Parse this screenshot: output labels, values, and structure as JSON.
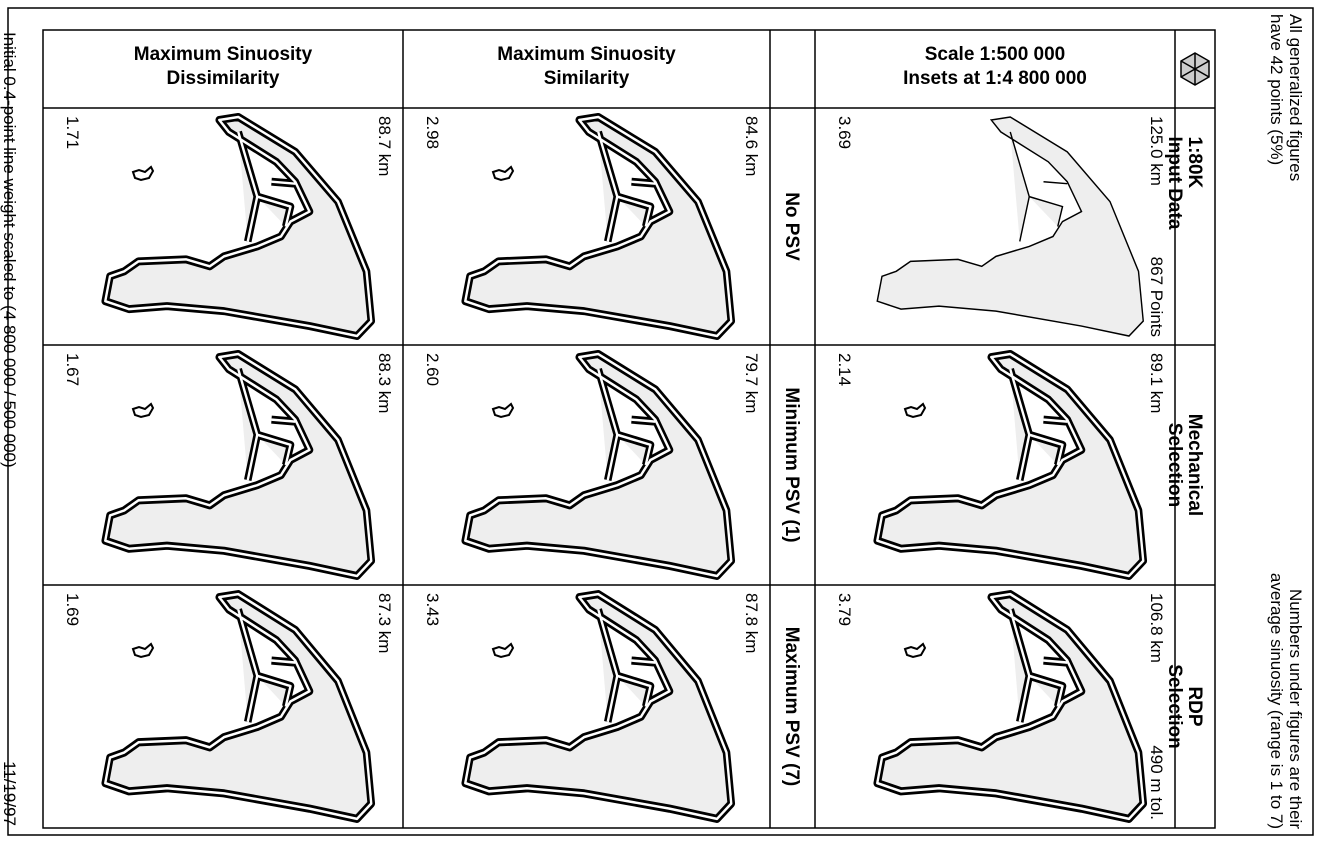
{
  "left_note": "Initial 0.4-point line weight scaled to (4 800 000 / 500 000)",
  "date": "11/19/97",
  "right_notes": [
    [
      "All generalized figures",
      "have 42 points (5%)"
    ],
    [
      "Numbers under figures are their",
      "average sinuosity (range is 1 to 7)"
    ]
  ],
  "columns": [
    {
      "header": [
        "Maximum Sinuosity",
        "Dissimilarity"
      ],
      "cells": [
        {
          "length": "88.7 km",
          "sinuosity": "1.71"
        },
        {
          "length": "88.3 km",
          "sinuosity": "1.67"
        },
        {
          "length": "87.3 km",
          "sinuosity": "1.69"
        }
      ]
    },
    {
      "header": [
        "Maximum Sinuosity",
        "Similarity"
      ],
      "cells": [
        {
          "length": "84.6 km",
          "sinuosity": "2.98"
        },
        {
          "length": "79.7 km",
          "sinuosity": "2.60"
        },
        {
          "length": "87.8 km",
          "sinuosity": "3.43"
        }
      ]
    },
    {
      "header": [
        "Scale 1:500 000",
        "Insets at 1:4 800 000"
      ],
      "cells": [
        {
          "length": "125.0 km",
          "note": "867 Points",
          "sinuosity": "3.69"
        },
        {
          "length": "89.1 km",
          "sinuosity": "2.14"
        },
        {
          "length": "106.8 km",
          "note": "490 m tol.",
          "sinuosity": "3.79"
        }
      ]
    }
  ],
  "psv_rows": [
    "No PSV",
    "Minimum PSV (1)",
    "Maximum PSV (7)"
  ],
  "method_rows": [
    [
      "1:80K",
      "Input Data"
    ],
    [
      "Mechanical",
      "Selection"
    ],
    [
      "RDP",
      "Selection"
    ]
  ]
}
